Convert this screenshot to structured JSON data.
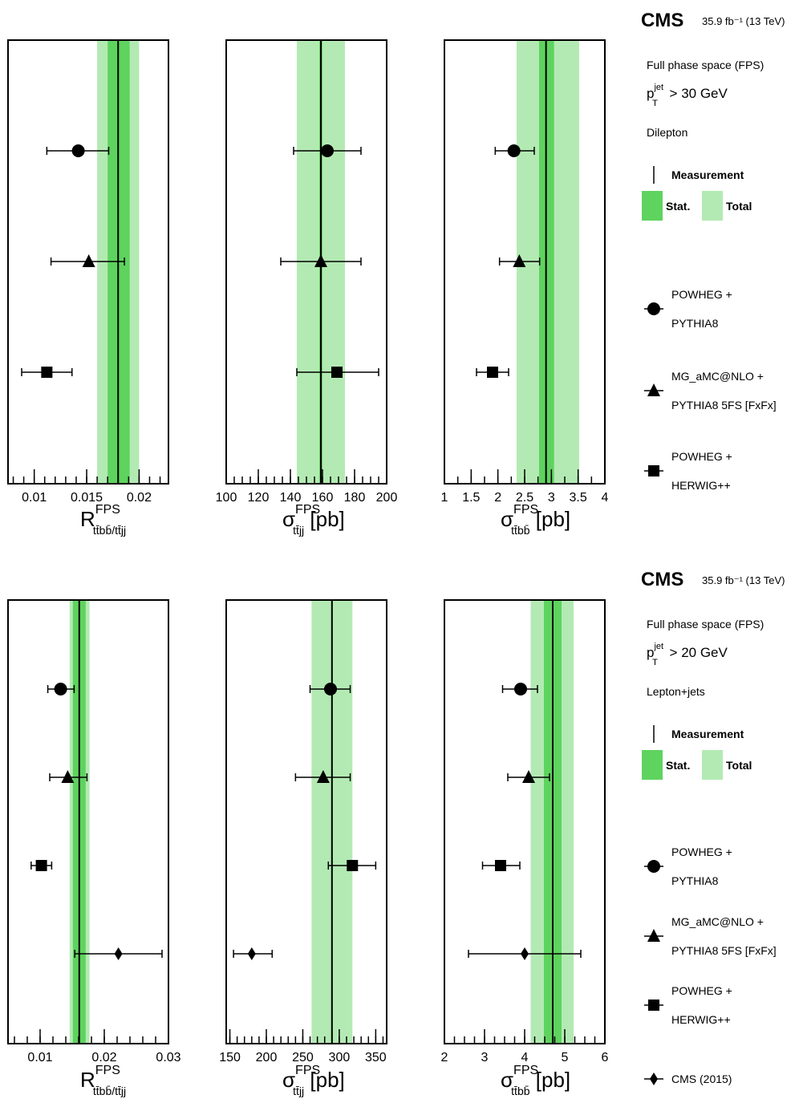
{
  "colors": {
    "stat": "#5ed35e",
    "total": "#b3eab3",
    "line": "#000000"
  },
  "cms_label": "CMS",
  "lumi_label": "35.9 fb⁻¹ (13 TeV)",
  "legend_common": {
    "measurement": "Measurement",
    "stat": "Stat.",
    "total": "Total",
    "powheg_pythia": [
      "POWHEG +",
      "PYTHIA8"
    ],
    "mg_pythia": [
      "MG_aMC@NLO +",
      "PYTHIA8 5FS [FxFx]"
    ],
    "powheg_herwig": [
      "POWHEG +",
      "HERWIG++"
    ],
    "cms2015": "CMS (2015)"
  },
  "chart_data": [
    {
      "type": "scatter",
      "row": "dilepton",
      "phase_space": "Full phase space (FPS)",
      "pt_cut": "> 30 GeV",
      "pt_label": "p",
      "channel": "Dilepton",
      "panels": [
        {
          "xlabel": {
            "main": "R",
            "sup": "FPS",
            "sub": "tt̄bb̄/tt̄jj",
            "unit": ""
          },
          "xlim": [
            0.0075,
            0.0228
          ],
          "ticks": [
            0.01,
            0.015,
            0.02
          ],
          "tick_labels": [
            "0.01",
            "0.015",
            "0.02"
          ],
          "minor_step": 0.001,
          "measurement": {
            "value": 0.018,
            "stat": [
              0.017,
              0.0191
            ],
            "total": [
              0.016,
              0.02
            ]
          },
          "predictions": [
            {
              "marker": "circle",
              "value": 0.0142,
              "err": [
                0.0112,
                0.0171
              ]
            },
            {
              "marker": "triangle",
              "value": 0.0152,
              "err": [
                0.0116,
                0.0186
              ]
            },
            {
              "marker": "square",
              "value": 0.0112,
              "err": [
                0.0088,
                0.0136
              ]
            }
          ]
        },
        {
          "xlabel": {
            "main": "σ",
            "sup": "FPS",
            "sub": "tt̄jj",
            "unit": "[pb]"
          },
          "xlim": [
            100,
            200
          ],
          "ticks": [
            100,
            120,
            140,
            160,
            180,
            200
          ],
          "tick_labels": [
            "100",
            "120",
            "140",
            "160",
            "180",
            "200"
          ],
          "minor_step": 5,
          "measurement": {
            "value": 159,
            "stat": [
              158,
              160
            ],
            "total": [
              144,
              174
            ]
          },
          "predictions": [
            {
              "marker": "circle",
              "value": 163,
              "err": [
                142,
                184
              ]
            },
            {
              "marker": "triangle",
              "value": 159,
              "err": [
                134,
                184
              ]
            },
            {
              "marker": "square",
              "value": 169,
              "err": [
                144,
                195
              ]
            }
          ]
        },
        {
          "xlabel": {
            "main": "σ",
            "sup": "FPS",
            "sub": "tt̄bb̄",
            "unit": "[pb]"
          },
          "xlim": [
            1,
            4
          ],
          "ticks": [
            1,
            1.5,
            2,
            2.5,
            3,
            3.5,
            4
          ],
          "tick_labels": [
            "1",
            "1.5",
            "2",
            "2.5",
            "3",
            "3.5",
            "4"
          ],
          "minor_step": 0.25,
          "measurement": {
            "value": 2.9,
            "stat": [
              2.77,
              3.05
            ],
            "total": [
              2.35,
              3.52
            ]
          },
          "predictions": [
            {
              "marker": "circle",
              "value": 2.3,
              "err": [
                1.95,
                2.68
              ]
            },
            {
              "marker": "triangle",
              "value": 2.4,
              "err": [
                2.03,
                2.78
              ]
            },
            {
              "marker": "square",
              "value": 1.9,
              "err": [
                1.6,
                2.2
              ]
            }
          ]
        }
      ]
    },
    {
      "type": "scatter",
      "row": "leptonjets",
      "phase_space": "Full phase space (FPS)",
      "pt_cut": "> 20 GeV",
      "pt_label": "p",
      "channel": "Lepton+jets",
      "panels": [
        {
          "xlabel": {
            "main": "R",
            "sup": "FPS",
            "sub": "tt̄bb̄/tt̄jj",
            "unit": ""
          },
          "xlim": [
            0.005,
            0.03
          ],
          "ticks": [
            0.01,
            0.02,
            0.03
          ],
          "tick_labels": [
            "0.01",
            "0.02",
            "0.03"
          ],
          "minor_step": 0.002,
          "measurement": {
            "value": 0.0161,
            "stat": [
              0.0151,
              0.0171
            ],
            "total": [
              0.0146,
              0.0177
            ]
          },
          "predictions": [
            {
              "marker": "circle",
              "value": 0.0132,
              "err": [
                0.0112,
                0.0153
              ]
            },
            {
              "marker": "triangle",
              "value": 0.0143,
              "err": [
                0.0115,
                0.0173
              ]
            },
            {
              "marker": "square",
              "value": 0.0102,
              "err": [
                0.0086,
                0.0118
              ]
            },
            {
              "marker": "diamond",
              "value": 0.0222,
              "err": [
                0.0154,
                0.029
              ]
            }
          ]
        },
        {
          "xlabel": {
            "main": "σ",
            "sup": "FPS",
            "sub": "tt̄jj",
            "unit": "[pb]"
          },
          "xlim": [
            145,
            365
          ],
          "ticks": [
            150,
            200,
            250,
            300,
            350
          ],
          "tick_labels": [
            "150",
            "200",
            "250",
            "300",
            "350"
          ],
          "minor_step": 10,
          "measurement": {
            "value": 290,
            "stat": [
              289,
              291
            ],
            "total": [
              262,
              318
            ]
          },
          "predictions": [
            {
              "marker": "circle",
              "value": 288,
              "err": [
                260,
                315
              ]
            },
            {
              "marker": "triangle",
              "value": 278,
              "err": [
                240,
                315
              ]
            },
            {
              "marker": "square",
              "value": 318,
              "err": [
                285,
                350
              ]
            },
            {
              "marker": "diamond",
              "value": 180,
              "err": [
                155,
                208
              ]
            }
          ]
        },
        {
          "xlabel": {
            "main": "σ",
            "sup": "FPS",
            "sub": "tt̄bb̄",
            "unit": "[pb]"
          },
          "xlim": [
            2,
            6
          ],
          "ticks": [
            2,
            3,
            4,
            5,
            6
          ],
          "tick_labels": [
            "2",
            "3",
            "4",
            "5",
            "6"
          ],
          "minor_step": 0.25,
          "measurement": {
            "value": 4.7,
            "stat": [
              4.48,
              4.92
            ],
            "total": [
              4.15,
              5.22
            ]
          },
          "predictions": [
            {
              "marker": "circle",
              "value": 3.9,
              "err": [
                3.45,
                4.32
              ]
            },
            {
              "marker": "triangle",
              "value": 4.1,
              "err": [
                3.58,
                4.62
              ]
            },
            {
              "marker": "square",
              "value": 3.4,
              "err": [
                2.95,
                3.88
              ]
            },
            {
              "marker": "diamond",
              "value": 4.0,
              "err": [
                2.6,
                5.4
              ]
            }
          ]
        }
      ]
    }
  ]
}
